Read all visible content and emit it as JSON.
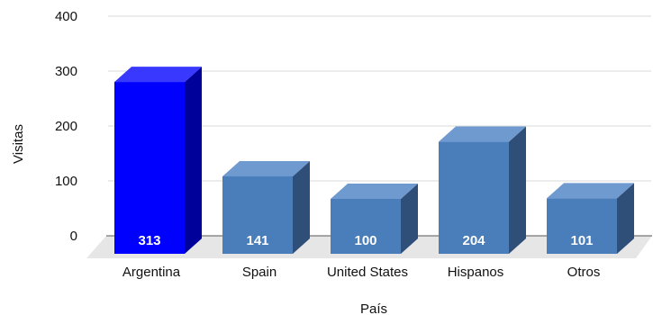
{
  "chart_data": {
    "type": "bar",
    "title": "",
    "xlabel": "País",
    "ylabel": "Visitas",
    "categories": [
      "Argentina",
      "Spain",
      "United States",
      "Hispanos",
      "Otros"
    ],
    "values": [
      313,
      141,
      100,
      204,
      101
    ],
    "data_labels": [
      "313",
      "141",
      "100",
      "204",
      "101"
    ],
    "ylim": [
      0,
      400
    ],
    "yticks": [
      0,
      100,
      200,
      300,
      400
    ],
    "grid": true,
    "legend": "none",
    "style": "3d",
    "colors": {
      "highlight_bar": "#0000ff",
      "highlight_side": "#00009a",
      "highlight_top": "#3838ff",
      "bar": "#4a7ebb",
      "bar_side": "#2f4e78",
      "bar_top": "#6f9ad0",
      "floor": "#e6e6e6",
      "gridline": "#d9d9d9",
      "data_label": "#ffffff"
    }
  }
}
